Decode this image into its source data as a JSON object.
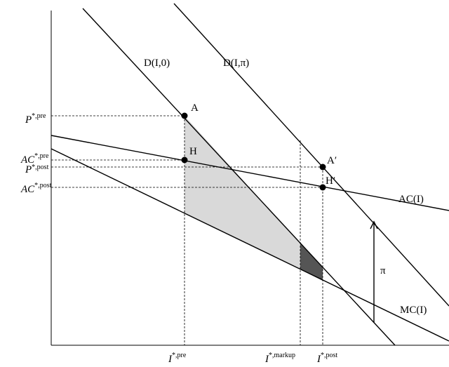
{
  "curves": {
    "demand_pre": "D(I,0)",
    "demand_post": "D(I,π)",
    "average_cost": "AC(I)",
    "marginal_cost": "MC(I)"
  },
  "points": {
    "a": "A",
    "h": "H",
    "a_prime": "A′",
    "h_prime": "H′"
  },
  "shift_label": "π",
  "y_axis_labels": [
    {
      "symbol": "P",
      "sup": "*,pre"
    },
    {
      "symbol": "AC",
      "sup": "*,pre"
    },
    {
      "symbol": "P",
      "sup": "*,post"
    },
    {
      "symbol": "AC",
      "sup": "*,post"
    }
  ],
  "x_axis_labels": [
    {
      "symbol": "I",
      "sup": "*,pre"
    },
    {
      "symbol": "I",
      "sup": "*,markup"
    },
    {
      "symbol": "I",
      "sup": "*,post"
    }
  ]
}
